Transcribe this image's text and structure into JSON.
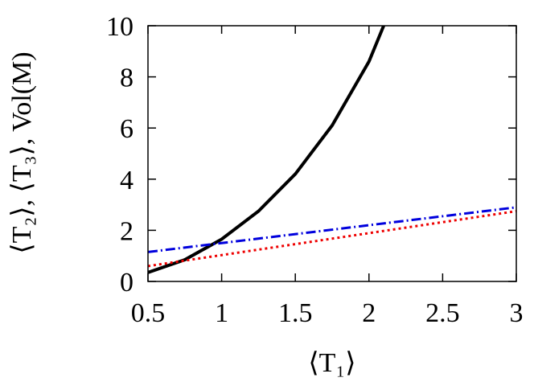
{
  "chart_data": {
    "type": "line",
    "xlabel": "⟨T₁⟩",
    "ylabel": "⟨T₂⟩, ⟨T₃⟩, Vol(M)",
    "xlim": [
      0.5,
      3
    ],
    "xticks": [
      0.5,
      1,
      1.5,
      2,
      2.5,
      3
    ],
    "ylim": [
      0,
      10
    ],
    "yticks": [
      0,
      2,
      4,
      6,
      8,
      10
    ],
    "series": [
      {
        "color": "#000000",
        "style": "solid",
        "x": [
          0.5,
          0.75,
          1,
          1.25,
          1.5,
          1.75,
          2,
          2.1
        ],
        "values": [
          0.35,
          0.85,
          1.65,
          2.75,
          4.2,
          6.1,
          8.6,
          10
        ]
      },
      {
        "color": "#0000dd",
        "style": "dashdot",
        "x": [
          0.5,
          3
        ],
        "values": [
          1.15,
          2.9
        ]
      },
      {
        "color": "#ee0000",
        "style": "dotted",
        "x": [
          0.5,
          3
        ],
        "values": [
          0.6,
          2.75
        ]
      }
    ]
  }
}
